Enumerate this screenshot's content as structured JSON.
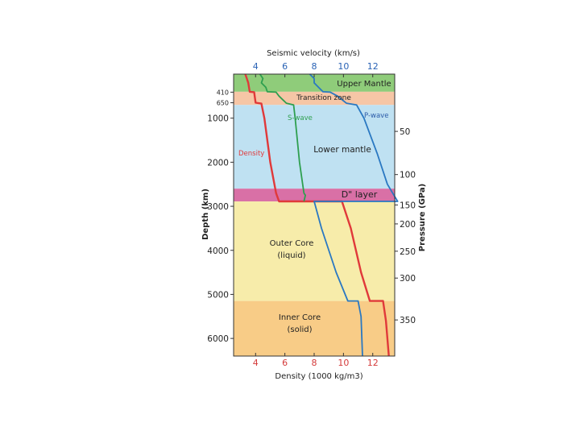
{
  "chart_data": {
    "type": "line",
    "title": "",
    "top_axis_label": "Seismic velocity (km/s)",
    "bottom_axis_label": "Density (1000 kg/m3)",
    "left_axis_label": "Depth (km)",
    "right_axis_label": "Pressure (GPa)",
    "top_ticks": [
      "4",
      "6",
      "8",
      "10",
      "12"
    ],
    "bottom_ticks": [
      "4",
      "6",
      "8",
      "10",
      "12"
    ],
    "x_range": [
      2.5,
      13.5
    ],
    "depth_ticks": [
      "410",
      "650",
      "1000",
      "2000",
      "3000",
      "4000",
      "5000",
      "6000"
    ],
    "depth_range": [
      0,
      6400
    ],
    "pressure_ticks": [
      {
        "label": "50",
        "depth": 1300
      },
      {
        "label": "100",
        "depth": 2280
      },
      {
        "label": "150",
        "depth": 2970
      },
      {
        "label": "200",
        "depth": 3400
      },
      {
        "label": "250",
        "depth": 4020
      },
      {
        "label": "300",
        "depth": 4630
      },
      {
        "label": "350",
        "depth": 5580
      }
    ],
    "layers": [
      {
        "name": "Upper Mantle",
        "top": 0,
        "bottom": 400,
        "color": "#8fcc7a"
      },
      {
        "name": "Transition zone",
        "top": 400,
        "bottom": 700,
        "color": "#f6c6a6"
      },
      {
        "name": "Lower mantle",
        "top": 700,
        "bottom": 2600,
        "color": "#bfe1f2"
      },
      {
        "name": "D\" layer",
        "top": 2600,
        "bottom": 2890,
        "color": "#d970a6"
      },
      {
        "name": "Outer Core (liquid)",
        "top": 2890,
        "bottom": 5150,
        "color": "#f7ecaa"
      },
      {
        "name": "Inner Core (solid)",
        "top": 5150,
        "bottom": 6400,
        "color": "#f8cc87"
      }
    ],
    "layer_labels": {
      "upper_mantle": "Upper Mantle",
      "transition_zone": "Transition zone",
      "lower_mantle": "Lower mantle",
      "d_layer": "D\" layer",
      "outer_core_1": "Outer Core",
      "outer_core_2": "(liquid)",
      "inner_core_1": "Inner Core",
      "inner_core_2": "(solid)"
    },
    "series": [
      {
        "name": "Density",
        "color": "#e0393a",
        "points": [
          [
            3.3,
            0
          ],
          [
            3.4,
            100
          ],
          [
            3.5,
            200
          ],
          [
            3.6,
            400
          ],
          [
            3.9,
            410
          ],
          [
            4.0,
            650
          ],
          [
            4.4,
            670
          ],
          [
            4.6,
            1000
          ],
          [
            5.0,
            2000
          ],
          [
            5.4,
            2700
          ],
          [
            5.6,
            2890
          ],
          [
            9.9,
            2890
          ],
          [
            10.5,
            3500
          ],
          [
            11.2,
            4500
          ],
          [
            11.8,
            5150
          ],
          [
            12.7,
            5150
          ],
          [
            12.9,
            5600
          ],
          [
            13.1,
            6400
          ]
        ]
      },
      {
        "name": "S-wave",
        "color": "#2e9f4f",
        "points": [
          [
            4.3,
            0
          ],
          [
            4.5,
            100
          ],
          [
            4.4,
            200
          ],
          [
            4.7,
            300
          ],
          [
            4.8,
            400
          ],
          [
            5.4,
            410
          ],
          [
            5.6,
            500
          ],
          [
            6.1,
            660
          ],
          [
            6.6,
            700
          ],
          [
            6.7,
            1000
          ],
          [
            7.0,
            2000
          ],
          [
            7.3,
            2700
          ],
          [
            7.4,
            2750
          ],
          [
            7.3,
            2890
          ]
        ]
      },
      {
        "name": "P-wave",
        "color": "#2a78c2",
        "points": [
          [
            7.7,
            0
          ],
          [
            8.0,
            100
          ],
          [
            8.0,
            200
          ],
          [
            8.6,
            400
          ],
          [
            9.1,
            410
          ],
          [
            9.6,
            500
          ],
          [
            10.2,
            660
          ],
          [
            10.9,
            700
          ],
          [
            11.4,
            1000
          ],
          [
            12.3,
            1800
          ],
          [
            13.0,
            2500
          ],
          [
            13.7,
            2890
          ],
          [
            8.0,
            2890
          ],
          [
            8.5,
            3500
          ],
          [
            9.5,
            4500
          ],
          [
            10.3,
            5150
          ],
          [
            11.0,
            5150
          ],
          [
            11.2,
            5500
          ],
          [
            11.3,
            6400
          ]
        ]
      }
    ],
    "curve_labels": {
      "density": "Density",
      "s_wave": "S-wave",
      "p_wave": "P-wave"
    }
  }
}
